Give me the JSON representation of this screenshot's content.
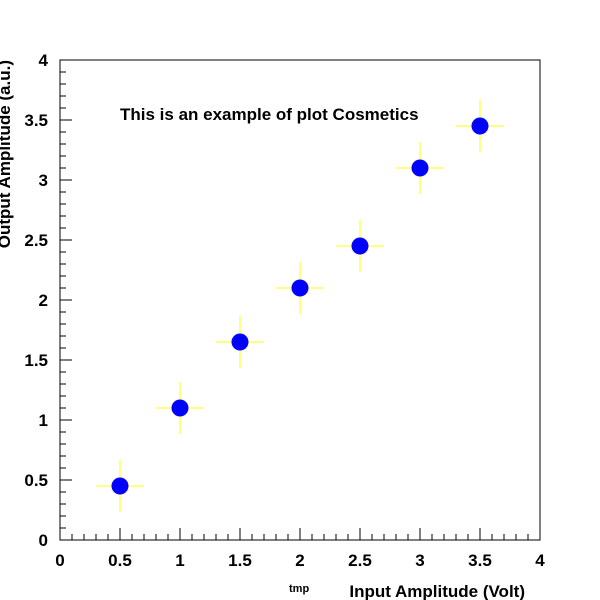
{
  "chart_data": {
    "type": "scatter",
    "title": "This is an example of plot Cosmetics",
    "xlabel": "Input Amplitude  (Volt)",
    "ylabel": "Output Amplitude (a.u.)",
    "extra_label": "tmp",
    "xlim": [
      0,
      4
    ],
    "ylim": [
      0,
      4
    ],
    "x_ticks": [
      "0",
      "0.5",
      "1",
      "1.5",
      "2",
      "2.5",
      "3",
      "3.5",
      "4"
    ],
    "y_ticks": [
      "0",
      "0.5",
      "1",
      "1.5",
      "2",
      "2.5",
      "3",
      "3.5",
      "4"
    ],
    "grid": false,
    "marker_color": "#0000ff",
    "error_bar_color": "#ffff00",
    "series": [
      {
        "x": [
          0.5,
          1.0,
          1.5,
          2.0,
          2.5,
          3.0,
          3.5
        ],
        "y": [
          0.45,
          1.1,
          1.65,
          2.1,
          2.45,
          3.1,
          3.45
        ],
        "x_err": [
          0.2,
          0.2,
          0.2,
          0.2,
          0.2,
          0.2,
          0.2
        ],
        "y_err": [
          0.22,
          0.22,
          0.22,
          0.22,
          0.22,
          0.22,
          0.22
        ]
      }
    ]
  }
}
